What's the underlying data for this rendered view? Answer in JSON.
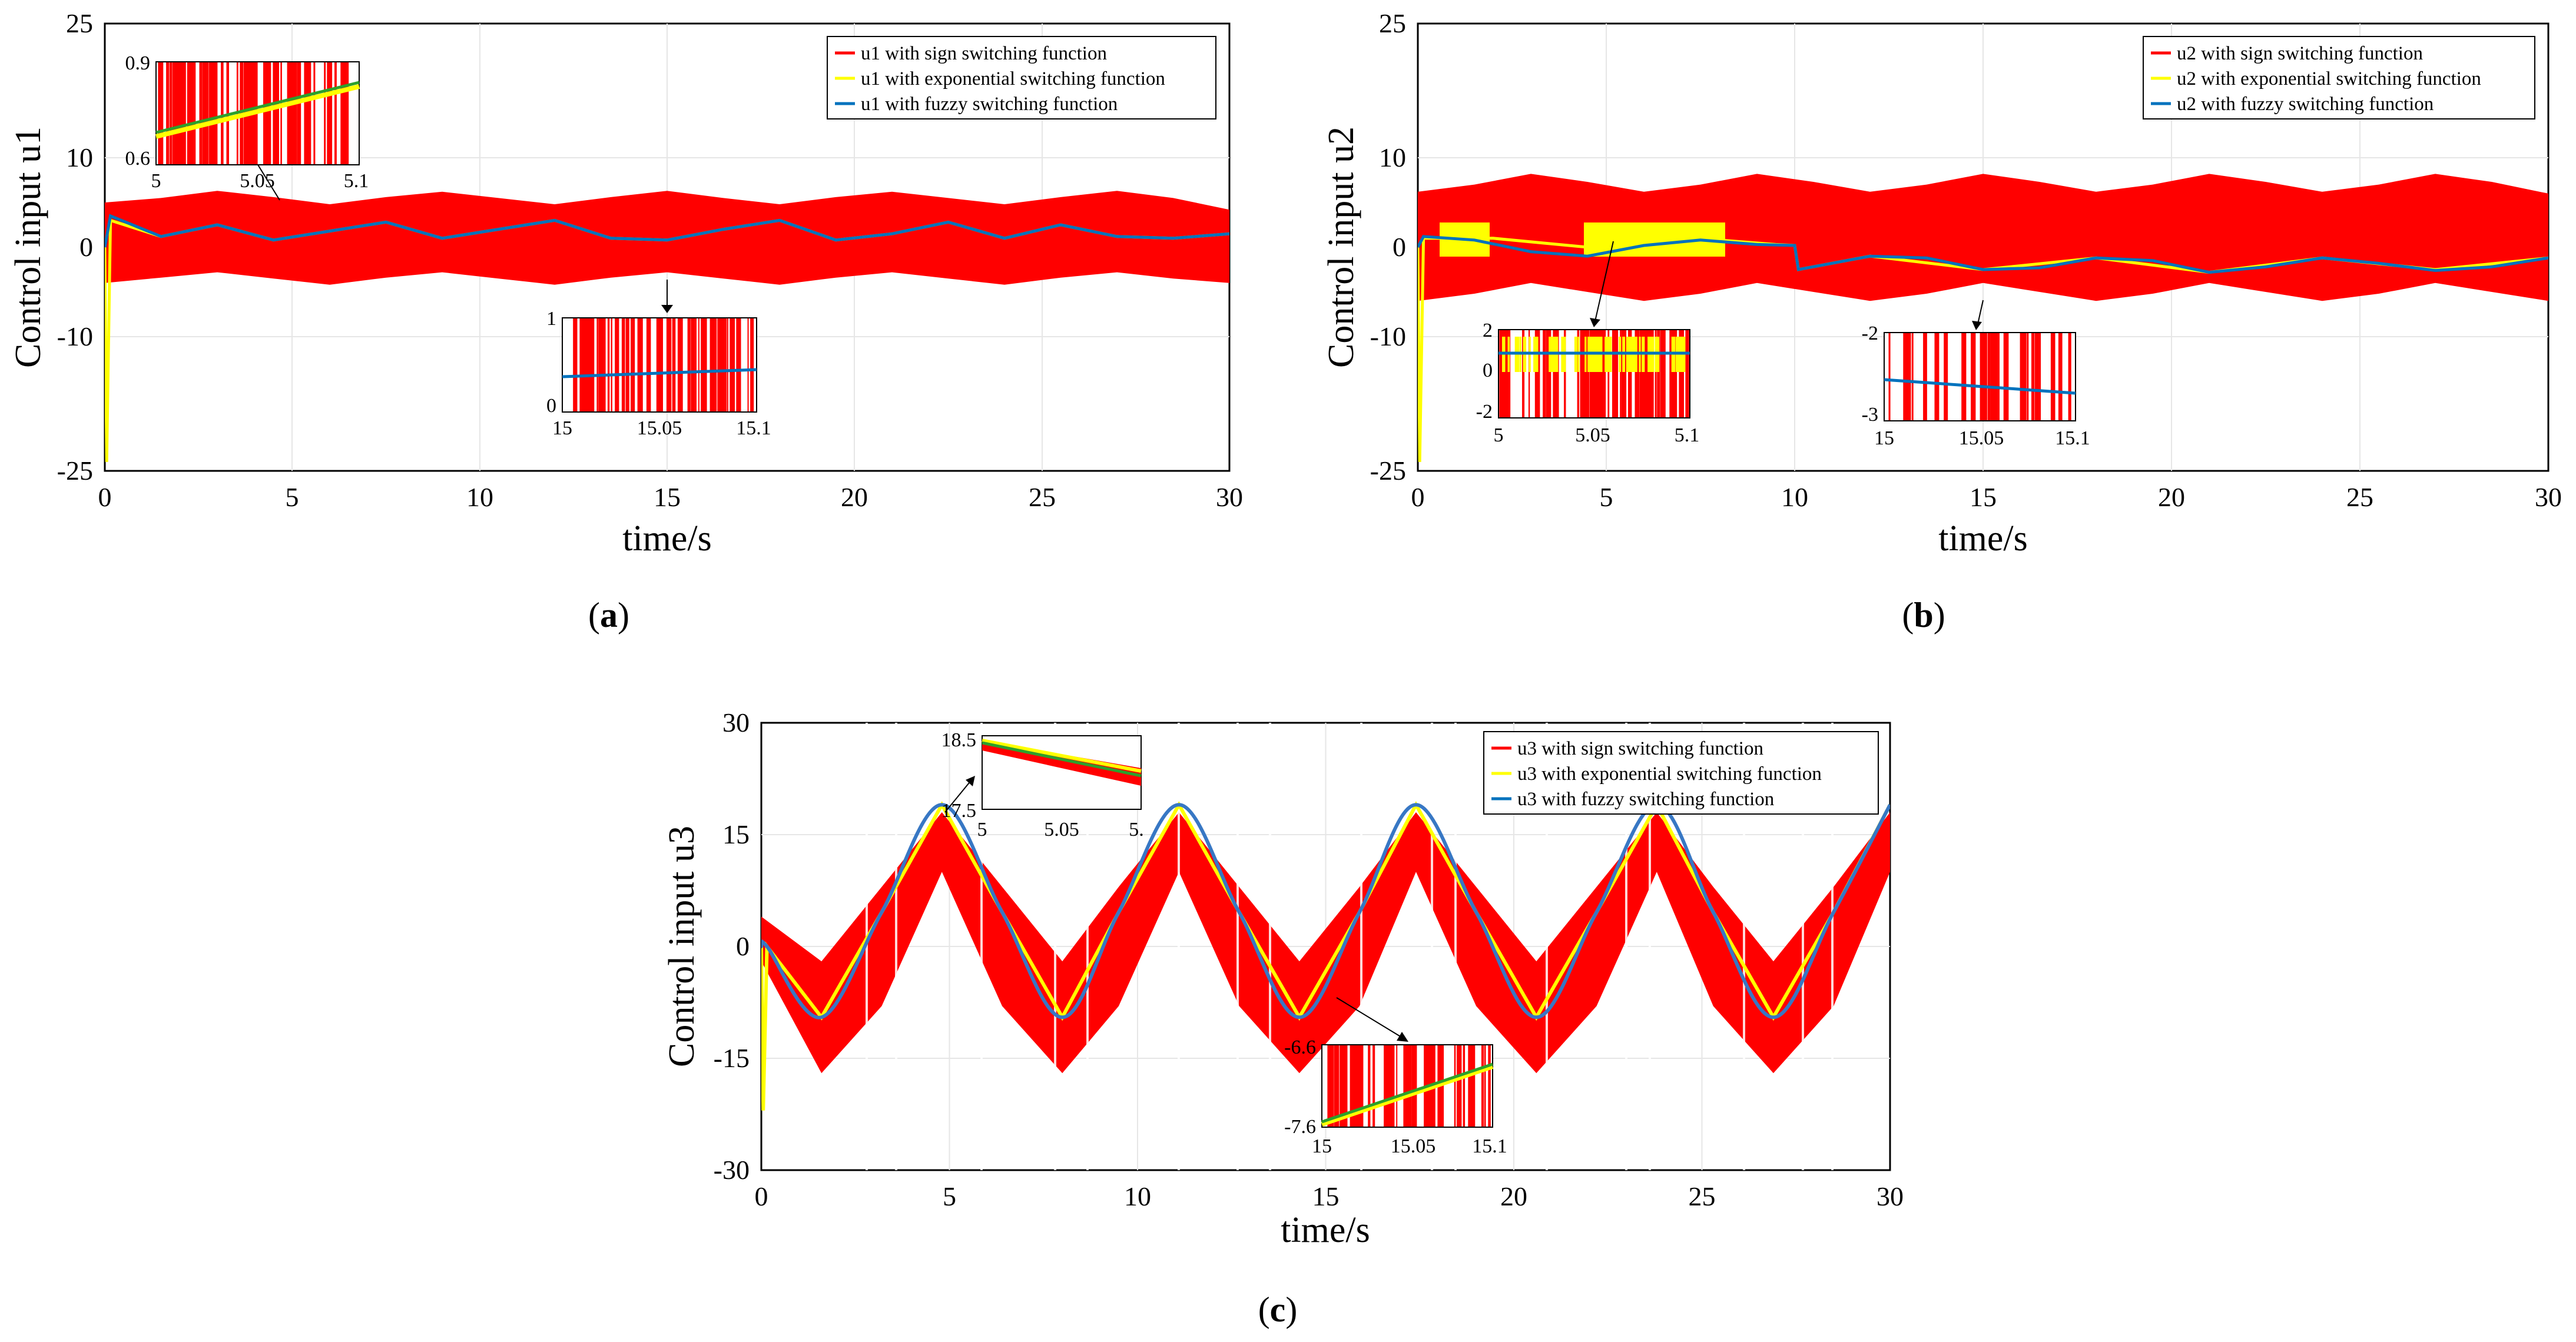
{
  "colors": {
    "sign": "#ff0000",
    "exponential": "#ffff00",
    "fuzzy": "#0072bd",
    "inset_green": "#2ca02c"
  },
  "panels": [
    {
      "caption_letter": "a",
      "xlabel": "time/s",
      "ylabel": "Control input u1",
      "legend": [
        "u1 with sign switching function",
        "u1 with exponential switching function",
        "u1 with fuzzy switching function"
      ],
      "insets": [
        {
          "xticks": [
            "5",
            "5.05",
            "5.1"
          ],
          "yticks": [
            "0.9",
            "0.6"
          ]
        },
        {
          "xticks": [
            "15",
            "15.05",
            "15.1"
          ],
          "yticks": [
            "1",
            "0"
          ]
        }
      ]
    },
    {
      "caption_letter": "b",
      "xlabel": "time/s",
      "ylabel": "Control input u2",
      "legend": [
        "u2 with sign switching function",
        "u2 with exponential switching function",
        "u2 with fuzzy switching function"
      ],
      "insets": [
        {
          "xticks": [
            "5",
            "5.05",
            "5.1"
          ],
          "yticks": [
            "2",
            "0",
            "-2"
          ]
        },
        {
          "xticks": [
            "15",
            "15.05",
            "15.1"
          ],
          "yticks": [
            "-2",
            "-3"
          ]
        }
      ]
    },
    {
      "caption_letter": "c",
      "xlabel": "time/s",
      "ylabel": "Control input u3",
      "legend": [
        "u3 with sign switching function",
        "u3 with exponential switching function",
        "u3 with fuzzy switching function"
      ],
      "insets": [
        {
          "xticks": [
            "5",
            "5.05",
            "5."
          ],
          "yticks": [
            "18.5",
            "17.5"
          ]
        },
        {
          "xticks": [
            "15",
            "15.05",
            "15.1"
          ],
          "yticks": [
            "-6.6",
            "-7.6"
          ]
        }
      ]
    }
  ],
  "chart_data": [
    {
      "type": "line",
      "panel": "a",
      "xlabel": "time/s",
      "ylabel": "Control input u1",
      "xlim": [
        0,
        30
      ],
      "ylim": [
        -25,
        25
      ],
      "xticks": [
        0,
        5,
        10,
        15,
        20,
        25,
        30
      ],
      "yticks": [
        25,
        10,
        0,
        -10,
        -25
      ],
      "grid": true,
      "legend_position": "top-right",
      "series": [
        {
          "name": "u1 with sign switching function",
          "x": [
            0,
            1.5,
            3,
            4.5,
            6,
            7.5,
            9,
            10.5,
            12,
            13.5,
            15,
            16.5,
            18,
            19.5,
            21,
            22.5,
            24,
            25.5,
            27,
            28.5,
            30
          ],
          "band_upper": [
            5,
            5.5,
            6.3,
            5.6,
            4.8,
            5.6,
            6.2,
            5.5,
            4.8,
            5.6,
            6.3,
            5.5,
            4.8,
            5.6,
            6.2,
            5.5,
            4.8,
            5.6,
            6.3,
            5.5,
            4.2
          ],
          "band_lower": [
            -4,
            -3.4,
            -2.8,
            -3.5,
            -4.2,
            -3.4,
            -2.8,
            -3.5,
            -4.2,
            -3.4,
            -2.8,
            -3.5,
            -4.2,
            -3.4,
            -2.8,
            -3.5,
            -4.2,
            -3.4,
            -2.8,
            -3.5,
            -4
          ]
        },
        {
          "name": "u1 with exponential switching function",
          "x": [
            0,
            0.05,
            0.15,
            1.5,
            3,
            4.5,
            6,
            7.5,
            9,
            10.5,
            12,
            13.5,
            15,
            16.5,
            18,
            19.5,
            21,
            22.5,
            24,
            25.5,
            27,
            28.5,
            30
          ],
          "values": [
            0,
            -24,
            3,
            1.2,
            2.5,
            0.8,
            1.8,
            2.8,
            1,
            2,
            3,
            1,
            0.8,
            2,
            3,
            0.8,
            1.5,
            2.8,
            1,
            2.5,
            1.2,
            1,
            1.5
          ]
        },
        {
          "name": "u1 with fuzzy switching function",
          "x": [
            0,
            0.15,
            1.5,
            3,
            4.5,
            6,
            7.5,
            9,
            10.5,
            12,
            13.5,
            15,
            16.5,
            18,
            19.5,
            21,
            22.5,
            24,
            25.5,
            27,
            28.5,
            30
          ],
          "values": [
            0,
            3.5,
            1.2,
            2.5,
            0.8,
            1.8,
            2.8,
            1,
            2,
            3,
            1,
            0.8,
            2,
            3,
            0.8,
            1.5,
            2.8,
            1,
            2.5,
            1.2,
            1,
            1.5
          ]
        }
      ]
    },
    {
      "type": "line",
      "panel": "b",
      "xlabel": "time/s",
      "ylabel": "Control input u2",
      "xlim": [
        0,
        30
      ],
      "ylim": [
        -25,
        25
      ],
      "xticks": [
        0,
        5,
        10,
        15,
        20,
        25,
        30
      ],
      "yticks": [
        25,
        10,
        0,
        -10,
        -25
      ],
      "grid": true,
      "legend_position": "top-right",
      "series": [
        {
          "name": "u2 with sign switching function",
          "x": [
            0,
            1.5,
            3,
            4.5,
            6,
            7.5,
            9,
            10.5,
            12,
            13.5,
            15,
            16.5,
            18,
            19.5,
            21,
            22.5,
            24,
            25.5,
            27,
            28.5,
            30
          ],
          "band_upper": [
            6.2,
            7,
            8.2,
            7.3,
            6.2,
            7,
            8.2,
            7.3,
            6.2,
            7,
            8.2,
            7.3,
            6.2,
            7,
            8.2,
            7.3,
            6.2,
            7,
            8.2,
            7.3,
            6
          ],
          "band_lower": [
            -6,
            -5.2,
            -4,
            -5,
            -6,
            -5.2,
            -4,
            -5,
            -6,
            -5.2,
            -4,
            -5,
            -6,
            -5.2,
            -4,
            -5,
            -6,
            -5.2,
            -4,
            -5,
            -6
          ]
        },
        {
          "name": "u2 with exponential switching function",
          "x": [
            0,
            0.05,
            0.15,
            2,
            4.5,
            6,
            8,
            9.5,
            10,
            10.1,
            12,
            15,
            18,
            21,
            24,
            27,
            30
          ],
          "values": [
            0,
            -24,
            1,
            1,
            0,
            0.8,
            0.8,
            0.3,
            0.2,
            -2.5,
            -1,
            -2.5,
            -1.2,
            -2.8,
            -1.2,
            -2.5,
            -1.2
          ]
        },
        {
          "name": "u2 with fuzzy switching function",
          "x": [
            0,
            0.15,
            1.5,
            3,
            4.5,
            6,
            7.5,
            9,
            10,
            10.1,
            12,
            13.5,
            15,
            16.5,
            18,
            19.5,
            21,
            22.5,
            24,
            25.5,
            27,
            28.5,
            30
          ],
          "values": [
            0,
            1.2,
            0.8,
            -0.5,
            -1,
            0.2,
            0.8,
            0.3,
            0.2,
            -2.5,
            -1,
            -1.2,
            -2.5,
            -2.3,
            -1.2,
            -1.5,
            -2.8,
            -2.2,
            -1.2,
            -1.8,
            -2.6,
            -2.2,
            -1.2
          ]
        }
      ]
    },
    {
      "type": "line",
      "panel": "c",
      "xlabel": "time/s",
      "ylabel": "Control input u3",
      "xlim": [
        0,
        30
      ],
      "ylim": [
        -30,
        30
      ],
      "xticks": [
        0,
        5,
        10,
        15,
        20,
        25,
        30
      ],
      "yticks": [
        30,
        15,
        0,
        -15,
        -30
      ],
      "grid": true,
      "legend_position": "top-right",
      "series": [
        {
          "name": "u3 with sign switching function",
          "x": [
            0,
            1.6,
            3.2,
            4.8,
            6.4,
            8,
            9.5,
            11.1,
            12.7,
            14.3,
            15.9,
            17.4,
            19,
            20.6,
            22.2,
            23.8,
            25.3,
            26.9,
            28.5,
            30
          ],
          "band_upper": [
            4,
            -2,
            8,
            18,
            8,
            -2,
            8,
            18,
            8,
            -2,
            8,
            18,
            8,
            -2,
            8,
            18,
            8,
            -2,
            8,
            18
          ],
          "band_lower": [
            -2,
            -17,
            -8,
            10,
            -8,
            -17,
            -8,
            10,
            -8,
            -17,
            -8,
            10,
            -8,
            -17,
            -8,
            10,
            -8,
            -17,
            -8,
            10
          ]
        },
        {
          "name": "u3 with exponential switching function",
          "x": [
            0,
            0.05,
            0.15,
            1.6,
            3.2,
            4.8,
            6.4,
            8,
            9.5,
            11.1,
            12.7,
            14.3,
            15.9,
            17.4,
            19,
            20.6,
            22.2,
            23.8,
            25.3,
            26.9,
            28.5,
            30
          ],
          "values": [
            0,
            -22,
            0,
            -9.5,
            4.6,
            19,
            4.6,
            -9.5,
            4.6,
            19,
            4.6,
            -9.5,
            4.6,
            19,
            4.6,
            -9.5,
            4.6,
            19,
            4.6,
            -9.5,
            4.6,
            19
          ]
        },
        {
          "name": "u3 with fuzzy switching function",
          "x": [
            0,
            0.15,
            1.6,
            3.2,
            4.8,
            6.4,
            8,
            9.5,
            11.1,
            12.7,
            14.3,
            15.9,
            17.4,
            19,
            20.6,
            22.2,
            23.8,
            25.3,
            26.9,
            28.5,
            30
          ],
          "values": [
            0,
            0,
            -9.5,
            4.6,
            19,
            4.6,
            -9.5,
            4.6,
            19,
            4.6,
            -9.5,
            4.6,
            19,
            4.6,
            -9.5,
            4.6,
            19,
            4.6,
            -9.5,
            4.6,
            19
          ]
        }
      ]
    }
  ]
}
